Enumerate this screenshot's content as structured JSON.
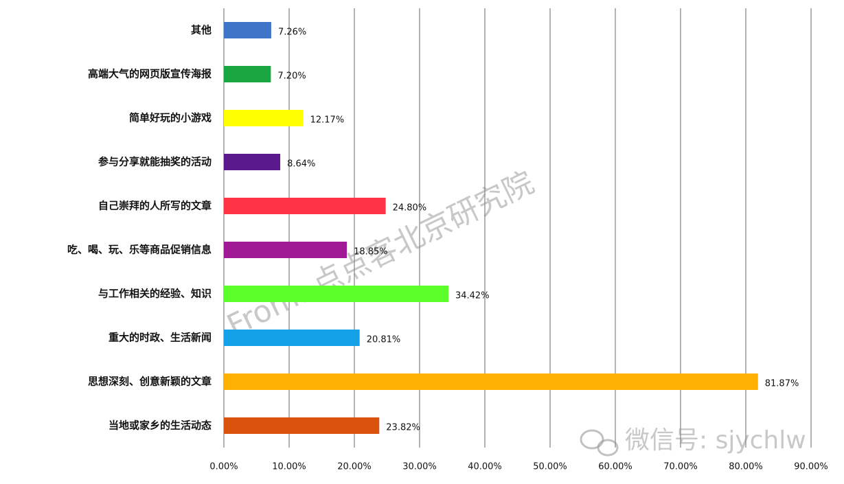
{
  "chart_data": {
    "type": "hbar",
    "categories": [
      "其他",
      "高端大气的网页版宣传海报",
      "简单好玩的小游戏",
      "参与分享就能抽奖的活动",
      "自己崇拜的人所写的文章",
      "吃、喝、玩、乐等商品促销信息",
      "与工作相关的经验、知识",
      "重大的时政、生活新闻",
      "思想深刻、创意新颖的文章",
      "当地或家乡的生活动态"
    ],
    "values": [
      7.26,
      7.2,
      12.17,
      8.64,
      24.8,
      18.85,
      34.42,
      20.81,
      81.87,
      23.82
    ],
    "value_labels": [
      "7.26%",
      "7.20%",
      "12.17%",
      "8.64%",
      "24.80%",
      "18.85%",
      "34.42%",
      "20.81%",
      "81.87%",
      "23.82%"
    ],
    "colors": [
      "#3f74c8",
      "#1aa640",
      "#ffff00",
      "#5b1a8c",
      "#ff3344",
      "#a01a96",
      "#5cff2a",
      "#14a0e6",
      "#ffb000",
      "#d9530f"
    ],
    "xlim": [
      0,
      90
    ],
    "xticks": [
      {
        "value": 0,
        "label": "0.00%"
      },
      {
        "value": 10,
        "label": "10.00%"
      },
      {
        "value": 20,
        "label": "20.00%"
      },
      {
        "value": 30,
        "label": "30.00%"
      },
      {
        "value": 40,
        "label": "40.00%"
      },
      {
        "value": 50,
        "label": "50.00%"
      },
      {
        "value": 60,
        "label": "60.00%"
      },
      {
        "value": 70,
        "label": "70.00%"
      },
      {
        "value": 80,
        "label": "80.00%"
      },
      {
        "value": 90,
        "label": "90.00%"
      }
    ],
    "grid": true,
    "annotations": [
      "From: 点点客北京研究院",
      "微信号: sjychlw"
    ]
  }
}
